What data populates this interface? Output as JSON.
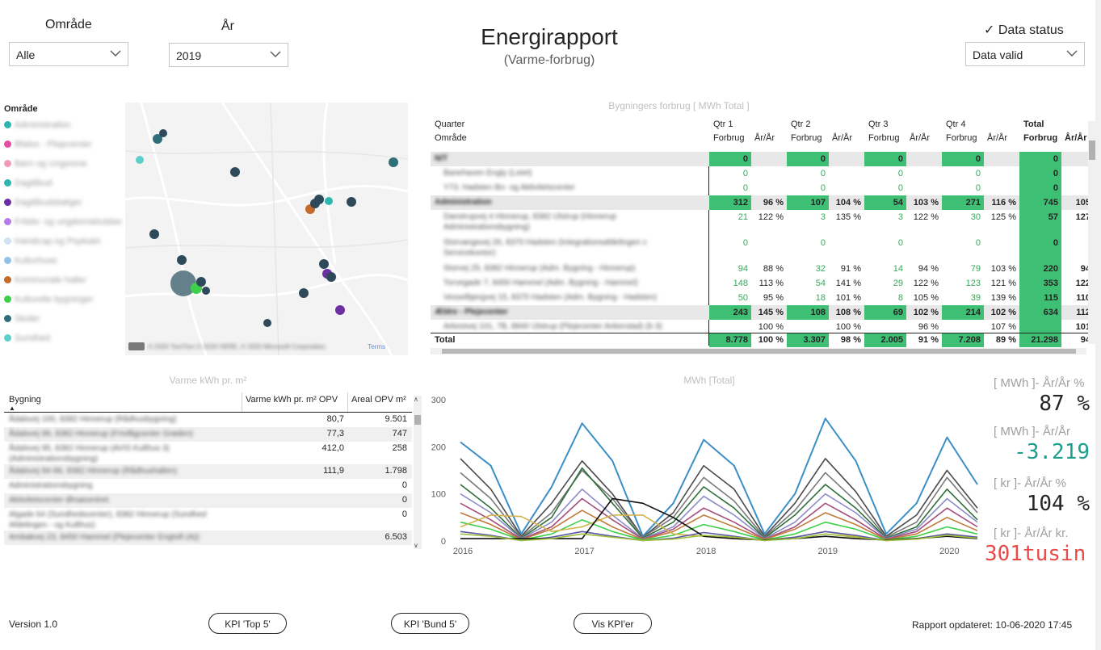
{
  "filters": {
    "area": {
      "title": "Område",
      "value": "Alle"
    },
    "year": {
      "title": "År",
      "value": "2019"
    },
    "status": {
      "title": "✓ Data status",
      "value": "Data valid"
    }
  },
  "header": {
    "title": "Energirapport",
    "subtitle": "(Varme-forbrug)"
  },
  "map": {
    "legend_title": "Område",
    "legend": [
      {
        "label": "Administration",
        "color": "#2fb6b0"
      },
      {
        "label": "Bfalos - Pleјecenter",
        "color": "#e94ca3"
      },
      {
        "label": "Børn og Ungeome",
        "color": "#f29bb6"
      },
      {
        "label": "Dagtilbud",
        "color": "#2fb6b0"
      },
      {
        "label": "Dagtilbudsbøtger",
        "color": "#6d2fa5"
      },
      {
        "label": "Fritids- og ungdomsklubber",
        "color": "#b57be8"
      },
      {
        "label": "Handicap og Psykiatri",
        "color": "#cfe3f5"
      },
      {
        "label": "Kulturhuse",
        "color": "#8fc3ea"
      },
      {
        "label": "Kommunale haller",
        "color": "#c46a2a"
      },
      {
        "label": "Kulturelle bygninger",
        "color": "#3ed04a"
      },
      {
        "label": "Skoler",
        "color": "#2e6f7a"
      },
      {
        "label": "Sundhed",
        "color": "#5fcfcb"
      }
    ],
    "attribution": "© 2020 TomTom © 2020 HERE, © 2020 Microsoft Corporation",
    "terms": "Terms"
  },
  "matrix": {
    "title": "Bygningers forbrug [ MWh Total ]",
    "row_header_1": "Quarter",
    "row_header_2": "Område",
    "quarters": [
      "Qtr 1",
      "Qtr 2",
      "Qtr 3",
      "Qtr 4",
      "Total"
    ],
    "sub_cons": "Forbrug",
    "sub_yoy": "År/År",
    "total_label": "Total",
    "rows": [
      {
        "name": "N/T",
        "kind": "group",
        "cells": [
          "0",
          "",
          "0",
          "",
          "0",
          "",
          "0",
          "",
          "0",
          ""
        ]
      },
      {
        "name": "Banehaven Engly (Leiet)",
        "kind": "item",
        "cells": [
          "0",
          "",
          "0",
          "",
          "0",
          "",
          "0",
          "",
          "0",
          ""
        ]
      },
      {
        "name": "Y73. Hadsten Bo- og Aktivitetscenter",
        "kind": "item",
        "cells": [
          "0",
          "",
          "0",
          "",
          "0",
          "",
          "0",
          "",
          "0",
          ""
        ]
      },
      {
        "name": "Administration",
        "kind": "group",
        "cells": [
          "312",
          "96 %",
          "107",
          "104 %",
          "54",
          "103 %",
          "271",
          "116 %",
          "745",
          "105"
        ]
      },
      {
        "name": "Danstrupvej 4 Hinnerup, 8382 Ulstrup (Hinnerup Administrationsbygning)",
        "kind": "item2",
        "cells": [
          "21",
          "122 %",
          "3",
          "135 %",
          "3",
          "122 %",
          "30",
          "125 %",
          "57",
          "127"
        ]
      },
      {
        "name": "Storvangsvej 26, 8370 Hadsten (Integrationsafdelingen c Servicekontor)",
        "kind": "item2",
        "cells": [
          "0",
          "",
          "0",
          "",
          "0",
          "",
          "0",
          "",
          "0",
          ""
        ]
      },
      {
        "name": "Storvej 25, 8382 Hinnerup (Adm. Bygning - Hinnerup)",
        "kind": "item",
        "cells": [
          "94",
          "88 %",
          "32",
          "91 %",
          "14",
          "94 %",
          "79",
          "103 %",
          "220",
          "94"
        ]
      },
      {
        "name": "Torvegade 7, 8450 Hammel (Adm. Bygning - Hammel)",
        "kind": "item",
        "cells": [
          "148",
          "113 %",
          "54",
          "141 %",
          "29",
          "122 %",
          "123",
          "121 %",
          "353",
          "122"
        ]
      },
      {
        "name": "Vesselbjergvej 15, 8370 Hadsten (Adm. Bygning - Hadsten)",
        "kind": "item",
        "cells": [
          "50",
          "95 %",
          "18",
          "101 %",
          "8",
          "105 %",
          "39",
          "139 %",
          "115",
          "110"
        ]
      },
      {
        "name": "Ældre - Plejecenter",
        "kind": "group",
        "cells": [
          "243",
          "145 %",
          "108",
          "108 %",
          "69",
          "102 %",
          "214",
          "102 %",
          "634",
          "112"
        ]
      },
      {
        "name": "Arkestvej 101, 7B, 8840 Ulstrup (Plejecenter Ankerstad) (b 3)",
        "kind": "item",
        "cells": [
          "",
          "100 %",
          "",
          "100 %",
          "",
          "96 %",
          "",
          "107 %",
          "",
          "101"
        ]
      }
    ],
    "total": [
      "8.778",
      "100 %",
      "3.307",
      "98 %",
      "2.005",
      "91 %",
      "7.208",
      "89 %",
      "21.298",
      "94"
    ]
  },
  "table": {
    "title": "Varme kWh pr. m²",
    "col_building": "Bygning",
    "col_kwh": "Varme kWh pr. m² OPV",
    "col_area": "Areal OPV m²",
    "rows": [
      {
        "name": "Ådalsvej 100, 8382 Hinnerup (Rådhusbygning)",
        "kwh": "80,7",
        "area": "9.501"
      },
      {
        "name": "Ådalsvej 99, 8382 Hinnerup (Frivilligcenter Grøden)",
        "kwh": "77,3",
        "area": "747"
      },
      {
        "name": "Ådalsvej 95, 8382 Hinnerup (AVIS Kulthus 3) (Administrationsbygning)",
        "kwh": "412,0",
        "area": "258"
      },
      {
        "name": "Ådalsvej 94-96, 8382 Hinnerup (Rådhushallen)",
        "kwh": "111,9",
        "area": "1.798"
      },
      {
        "name": "Administrationsbygning",
        "kwh": "",
        "area": "0"
      },
      {
        "name": "Aktivitetscenter Ørsøcentret",
        "kwh": "",
        "area": "0"
      },
      {
        "name": "Algade 64 (Sundhedscenter), 8382 Hinnerup (Sundhed Afdelingen - og Kulthus)",
        "kwh": "",
        "area": "0"
      },
      {
        "name": "Ambakvej 23, 8450 Hammel (Plejecenter Engtoft (A))",
        "kwh": "",
        "area": "6.503"
      }
    ]
  },
  "line_chart": {
    "title": "MWh [Total]",
    "colors": [
      "#3b8fc6",
      "#4a4a4a",
      "#7a7a7a",
      "#2e6f3a",
      "#8c8cc8",
      "#a54d7a",
      "#c07a3a",
      "#3ed04a",
      "#d3b24a",
      "#5a5aa8",
      "#111111",
      "#9fbf3a"
    ]
  },
  "chart_data": {
    "type": "line",
    "title": "MWh [Total]",
    "xlabel": "",
    "ylabel": "",
    "x_ticks": [
      "2016",
      "2017",
      "2018",
      "2019",
      "2020"
    ],
    "y_ticks": [
      0,
      100,
      200,
      300
    ],
    "ylim": [
      0,
      300
    ],
    "x": [
      "2016-01",
      "2016-04",
      "2016-07",
      "2016-10",
      "2017-01",
      "2017-04",
      "2017-07",
      "2017-10",
      "2018-01",
      "2018-04",
      "2018-07",
      "2018-10",
      "2019-01",
      "2019-04",
      "2019-07",
      "2019-10",
      "2020-01",
      "2020-04"
    ],
    "series": [
      {
        "values": [
          210,
          160,
          15,
          115,
          250,
          170,
          10,
          80,
          215,
          160,
          15,
          100,
          260,
          170,
          15,
          80,
          220,
          120
        ]
      },
      {
        "values": [
          175,
          110,
          10,
          80,
          170,
          100,
          8,
          60,
          160,
          110,
          10,
          80,
          175,
          105,
          10,
          55,
          150,
          70
        ]
      },
      {
        "values": [
          145,
          90,
          8,
          60,
          150,
          90,
          8,
          50,
          135,
          85,
          8,
          65,
          145,
          85,
          8,
          40,
          135,
          60
        ]
      },
      {
        "values": [
          120,
          70,
          6,
          50,
          155,
          80,
          6,
          40,
          115,
          70,
          6,
          55,
          120,
          70,
          6,
          30,
          110,
          45
        ]
      },
      {
        "values": [
          100,
          60,
          5,
          40,
          110,
          55,
          5,
          30,
          95,
          55,
          5,
          40,
          100,
          60,
          5,
          25,
          90,
          40
        ]
      },
      {
        "values": [
          80,
          45,
          4,
          30,
          90,
          45,
          4,
          25,
          70,
          40,
          4,
          30,
          80,
          45,
          4,
          20,
          70,
          30
        ]
      },
      {
        "values": [
          60,
          35,
          3,
          25,
          65,
          30,
          3,
          20,
          55,
          30,
          3,
          25,
          60,
          35,
          3,
          15,
          50,
          22
        ]
      },
      {
        "values": [
          40,
          25,
          2,
          15,
          45,
          20,
          2,
          12,
          35,
          20,
          2,
          15,
          40,
          25,
          2,
          10,
          30,
          15
        ]
      },
      {
        "values": [
          30,
          55,
          52,
          20,
          30,
          55,
          55,
          15,
          10,
          5,
          2,
          8,
          20,
          10,
          2,
          5,
          15,
          8
        ]
      },
      {
        "values": [
          20,
          12,
          1,
          8,
          20,
          10,
          1,
          6,
          18,
          10,
          1,
          8,
          20,
          12,
          1,
          5,
          15,
          8
        ]
      },
      {
        "values": [
          5,
          5,
          5,
          5,
          5,
          90,
          80,
          50,
          10,
          5,
          2,
          5,
          10,
          5,
          2,
          5,
          10,
          5
        ]
      },
      {
        "values": [
          15,
          10,
          1,
          5,
          15,
          8,
          1,
          4,
          12,
          8,
          1,
          5,
          15,
          8,
          1,
          4,
          12,
          6
        ]
      }
    ]
  },
  "kpis": [
    {
      "label": "[ MWh ]- År/År %",
      "value": "87 %",
      "color": "#252423"
    },
    {
      "label": "[ MWh ]- År/År",
      "value": "-3.219",
      "color": "#1b9e8a"
    },
    {
      "label": "[ kr ]- År/År %",
      "value": "104 %",
      "color": "#252423"
    },
    {
      "label": "[ kr ]- År/År kr.",
      "value": "301tusin...",
      "color": "#e84a4a"
    }
  ],
  "footer": {
    "version": "Version 1.0",
    "btn_top": "KPI 'Top 5'",
    "btn_bottom": "KPI 'Bund 5'",
    "btn_vis": "Vis KPI'er",
    "updated": "Rapport opdateret: 10-06-2020 17:45"
  }
}
